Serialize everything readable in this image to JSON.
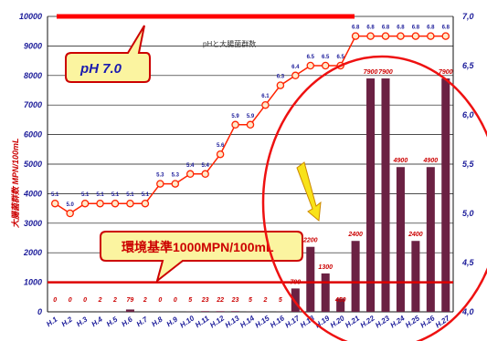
{
  "chart_data": {
    "type": "bar+line",
    "subtitle": "pHと大腸菌群数",
    "ylabel_left": "大腸菌群数 MPN/100mL",
    "left_axis": {
      "ylim": [
        0,
        10000
      ],
      "ticks": [
        "0",
        "1000",
        "2000",
        "3000",
        "4000",
        "5000",
        "6000",
        "7000",
        "8000",
        "9000",
        "10000"
      ]
    },
    "right_axis": {
      "ylim": [
        4.0,
        7.0
      ],
      "ticks": [
        "4,0",
        "4,5",
        "5,0",
        "5,5",
        "6,0",
        "6,5",
        "7,0"
      ]
    },
    "categories": [
      "H.1",
      "H.2",
      "H.3",
      "H.4",
      "H.5",
      "H.6",
      "H.7",
      "H.8",
      "H.9",
      "H.10",
      "H.11",
      "H.12",
      "H.13",
      "H.14",
      "H.15",
      "H.16",
      "H.17",
      "H.18",
      "H.19",
      "H.20",
      "H.21",
      "H.22",
      "H.23",
      "H.24",
      "H.25",
      "H.26",
      "H.27"
    ],
    "series": [
      {
        "kind": "bar",
        "values": [
          0,
          0,
          0,
          2,
          2,
          79,
          2,
          0,
          0,
          5,
          23,
          22,
          23,
          5,
          2,
          5,
          790,
          2200,
          1300,
          450,
          2400,
          7900,
          7900,
          4900,
          2400,
          4900,
          7900
        ],
        "labels": [
          "0",
          "0",
          "0",
          "2",
          "2",
          "79",
          "2",
          "0",
          "0",
          "5",
          "23",
          "22",
          "23",
          "5",
          "2",
          "5",
          "790",
          "2200",
          "1300",
          "450",
          "2400",
          "7900",
          "7900",
          "4900",
          "2400",
          "4900",
          "7900"
        ],
        "color": "#6b2143"
      },
      {
        "kind": "line",
        "values": [
          5.1,
          5.0,
          5.1,
          5.1,
          5.1,
          5.1,
          5.1,
          5.3,
          5.3,
          5.4,
          5.4,
          5.6,
          5.9,
          5.9,
          6.1,
          6.3,
          6.4,
          6.5,
          6.5,
          6.5,
          6.8,
          6.8,
          6.8,
          6.8,
          6.8,
          6.8,
          6.8
        ],
        "labels": [
          "5.1",
          "5.0",
          "5.1",
          "5.1",
          "5.1",
          "5.1",
          "5.1",
          "5.3",
          "5.3",
          "5.4",
          "5.4",
          "5.6",
          "5.9",
          "5.9",
          "6.1",
          "6.3",
          "6.4",
          "6.5",
          "6.5",
          "6.5",
          "6.8",
          "6.8",
          "6.8",
          "6.8",
          "6.8",
          "6.8",
          "6.8"
        ],
        "color": "#ff2200"
      }
    ],
    "reference_lines": [
      {
        "axis": "left",
        "value": 1000,
        "color": "#dd0000"
      },
      {
        "axis": "right",
        "value": 7.0,
        "color": "#ff0000"
      }
    ],
    "callouts": {
      "ph": "pH 7.0",
      "standard": "環境基準1000MPN/100mL"
    },
    "grid": true
  }
}
